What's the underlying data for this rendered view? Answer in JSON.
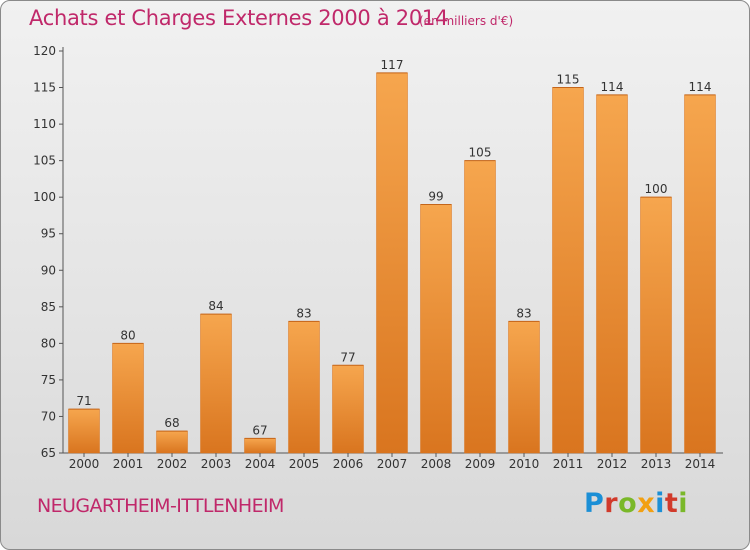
{
  "header": {
    "title": "Achats et Charges Externes 2000 à 2014",
    "subtitle": "(en milliers d'€)"
  },
  "footer": {
    "commune": "NEUGARTHEIM-ITTLENHEIM",
    "logo_text": "Proxiti"
  },
  "colors": {
    "bar_light": "#f6a64e",
    "bar_dark": "#d9751f",
    "title": "#c0286a",
    "logo": [
      "#1b8fd6",
      "#d13a2b",
      "#7ab829",
      "#f2a012",
      "#1b8fd6",
      "#d13a2b",
      "#7ab829"
    ]
  },
  "chart_data": {
    "type": "bar",
    "title": "Achats et Charges Externes 2000 à 2014",
    "subtitle": "(en milliers d'€)",
    "categories": [
      "2000",
      "2001",
      "2002",
      "2003",
      "2004",
      "2005",
      "2006",
      "2007",
      "2008",
      "2009",
      "2010",
      "2011",
      "2012",
      "2013",
      "2014"
    ],
    "values": [
      71,
      80,
      68,
      84,
      67,
      83,
      77,
      117,
      99,
      105,
      83,
      115,
      114,
      100,
      114
    ],
    "ylim": [
      65,
      120
    ],
    "yticks": [
      65,
      70,
      75,
      80,
      85,
      90,
      95,
      100,
      105,
      110,
      115,
      120
    ],
    "grid": false,
    "data_labels": true
  }
}
